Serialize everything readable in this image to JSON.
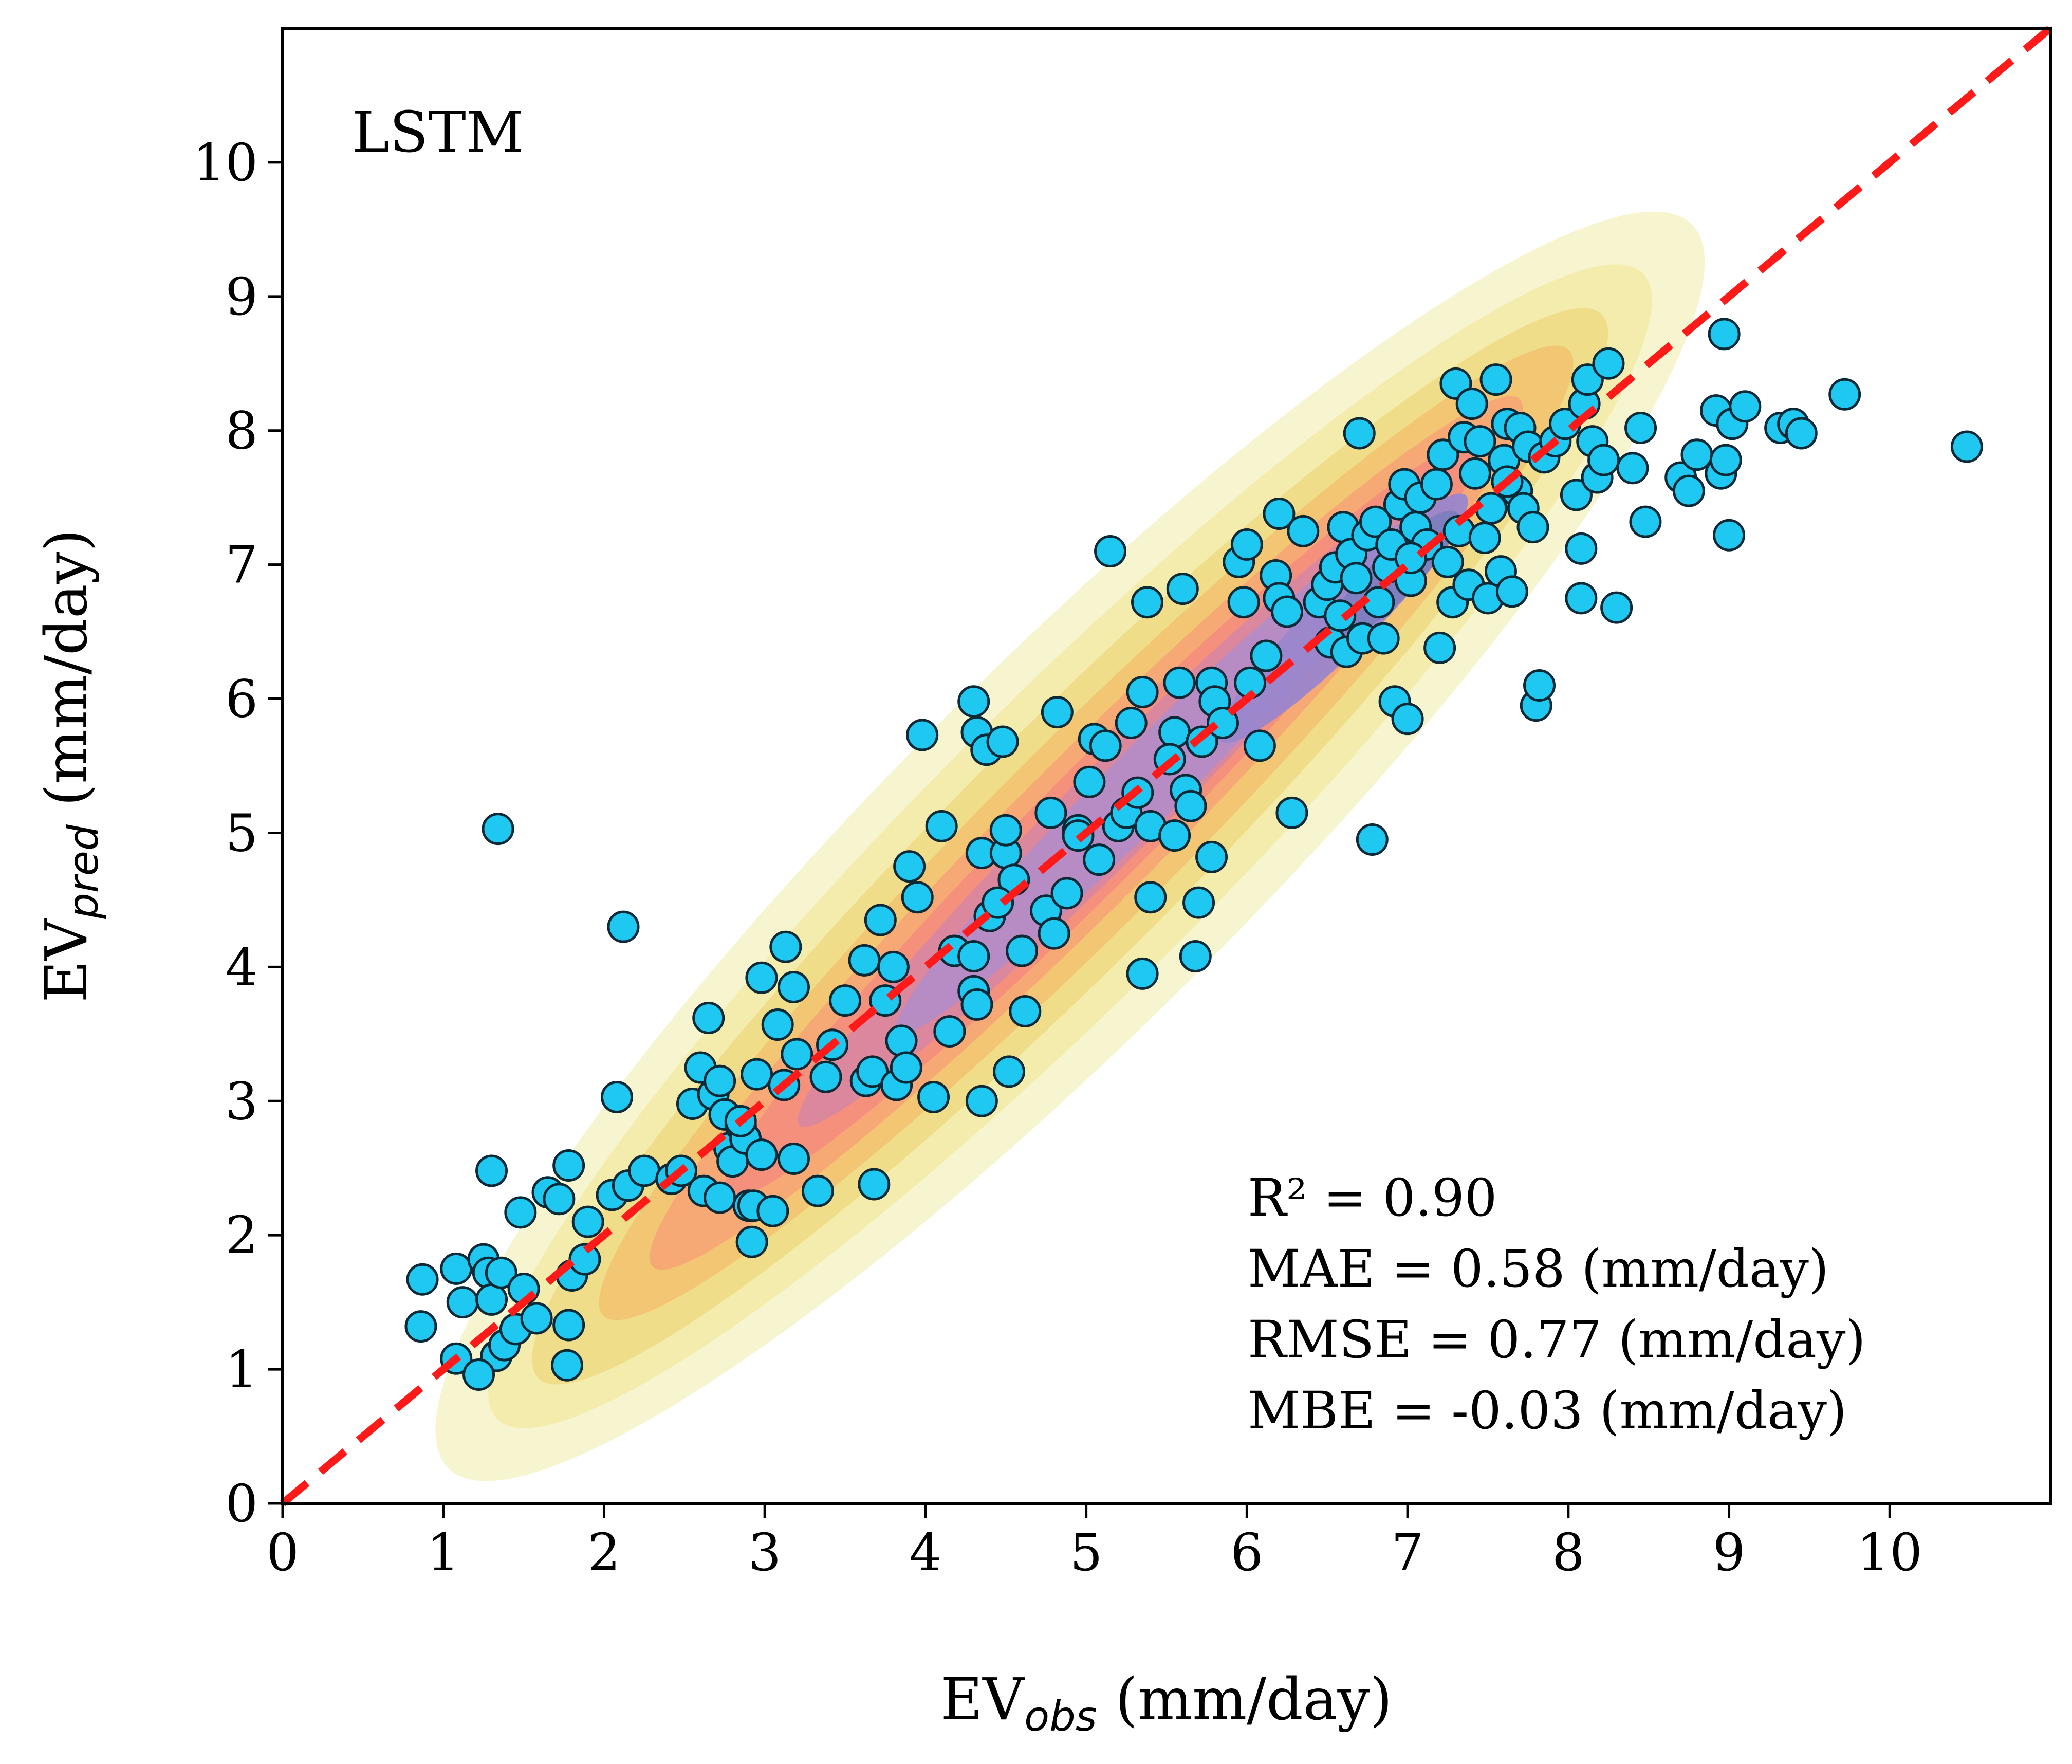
{
  "chart_data": {
    "type": "scatter",
    "title": "",
    "model_label": "LSTM",
    "xlabel": {
      "main": "EV",
      "sub": "obs",
      "unit": " (mm/day)"
    },
    "ylabel": {
      "main": "EV",
      "sub": "pred",
      "unit": " (mm/day)"
    },
    "xlim": [
      0,
      11
    ],
    "ylim": [
      0,
      11
    ],
    "xticks": [
      "0",
      "1",
      "2",
      "3",
      "4",
      "5",
      "6",
      "7",
      "8",
      "9",
      "10"
    ],
    "yticks": [
      "0",
      "1",
      "2",
      "3",
      "4",
      "5",
      "6",
      "7",
      "8",
      "9",
      "10"
    ],
    "grid": false,
    "legend": "none",
    "reference_line": {
      "label": "1:1 line",
      "from": [
        0,
        0
      ],
      "to": [
        11,
        11
      ],
      "color": "#ff1a1a",
      "style": "dashed"
    },
    "metrics": [
      "R² = 0.90",
      "MAE = 0.58 (mm/day)",
      "RMSE = 0.77 (mm/day)",
      "MBE = -0.03 (mm/day)"
    ],
    "point_color": "#1ec8f0",
    "density_colors": [
      "#f7f4cc",
      "#f3ebaa",
      "#efdc88",
      "#f2c472",
      "#f5a874",
      "#f38e7c",
      "#d987a0",
      "#b58cc6",
      "#9a86cc",
      "#7d7ec0"
    ],
    "series": [
      {
        "points": [
          [
            0.87,
            1.67
          ],
          [
            0.86,
            1.32
          ],
          [
            1.08,
            1.75
          ],
          [
            1.12,
            1.5
          ],
          [
            1.08,
            1.08
          ],
          [
            1.25,
            1.82
          ],
          [
            1.28,
            1.72
          ],
          [
            1.3,
            1.52
          ],
          [
            1.33,
            1.1
          ],
          [
            1.22,
            0.96
          ],
          [
            1.36,
            1.72
          ],
          [
            1.38,
            1.18
          ],
          [
            1.45,
            1.3
          ],
          [
            1.5,
            1.6
          ],
          [
            1.58,
            1.38
          ],
          [
            1.3,
            2.48
          ],
          [
            1.48,
            2.17
          ],
          [
            1.65,
            2.32
          ],
          [
            1.72,
            2.27
          ],
          [
            1.78,
            2.52
          ],
          [
            1.8,
            1.7
          ],
          [
            1.88,
            1.82
          ],
          [
            1.9,
            2.1
          ],
          [
            1.78,
            1.33
          ],
          [
            1.77,
            1.03
          ],
          [
            2.05,
            2.3
          ],
          [
            2.15,
            2.37
          ],
          [
            2.25,
            2.48
          ],
          [
            2.42,
            2.42
          ],
          [
            2.08,
            3.03
          ],
          [
            2.12,
            4.3
          ],
          [
            1.34,
            5.03
          ],
          [
            2.55,
            2.98
          ],
          [
            2.6,
            3.25
          ],
          [
            2.65,
            3.62
          ],
          [
            2.68,
            3.05
          ],
          [
            2.72,
            3.15
          ],
          [
            2.75,
            2.9
          ],
          [
            2.62,
            2.33
          ],
          [
            2.72,
            2.28
          ],
          [
            2.78,
            2.65
          ],
          [
            2.8,
            2.55
          ],
          [
            2.85,
            2.82
          ],
          [
            2.88,
            2.72
          ],
          [
            2.9,
            2.22
          ],
          [
            2.93,
            2.22
          ],
          [
            2.95,
            3.2
          ],
          [
            2.98,
            2.6
          ],
          [
            3.05,
            2.18
          ],
          [
            2.92,
            1.95
          ],
          [
            2.98,
            3.92
          ],
          [
            3.08,
            3.57
          ],
          [
            3.13,
            4.15
          ],
          [
            3.18,
            3.85
          ],
          [
            3.2,
            3.35
          ],
          [
            3.18,
            2.57
          ],
          [
            3.33,
            2.33
          ],
          [
            3.38,
            3.18
          ],
          [
            3.5,
            3.75
          ],
          [
            3.62,
            4.05
          ],
          [
            3.63,
            3.15
          ],
          [
            3.67,
            3.22
          ],
          [
            3.72,
            4.35
          ],
          [
            3.75,
            3.75
          ],
          [
            3.8,
            4.0
          ],
          [
            3.82,
            3.12
          ],
          [
            3.85,
            3.45
          ],
          [
            3.88,
            3.25
          ],
          [
            3.9,
            4.75
          ],
          [
            3.95,
            4.52
          ],
          [
            3.98,
            5.73
          ],
          [
            3.68,
            2.38
          ],
          [
            4.05,
            3.03
          ],
          [
            4.1,
            5.05
          ],
          [
            4.15,
            3.52
          ],
          [
            4.18,
            4.12
          ],
          [
            4.3,
            4.08
          ],
          [
            4.3,
            3.82
          ],
          [
            4.32,
            3.72
          ],
          [
            4.3,
            5.98
          ],
          [
            4.32,
            5.75
          ],
          [
            4.35,
            4.85
          ],
          [
            4.38,
            5.62
          ],
          [
            4.4,
            4.38
          ],
          [
            4.48,
            5.68
          ],
          [
            4.5,
            4.85
          ],
          [
            4.5,
            5.02
          ],
          [
            4.55,
            4.65
          ],
          [
            4.6,
            4.12
          ],
          [
            4.62,
            3.67
          ],
          [
            4.52,
            3.22
          ],
          [
            4.35,
            3.0
          ],
          [
            4.75,
            4.42
          ],
          [
            4.78,
            5.15
          ],
          [
            4.8,
            4.25
          ],
          [
            4.82,
            5.9
          ],
          [
            4.88,
            4.55
          ],
          [
            4.95,
            5.02
          ],
          [
            5.02,
            5.38
          ],
          [
            5.05,
            5.7
          ],
          [
            5.08,
            4.8
          ],
          [
            5.12,
            5.65
          ],
          [
            5.15,
            7.1
          ],
          [
            5.2,
            5.05
          ],
          [
            5.25,
            5.15
          ],
          [
            5.28,
            5.82
          ],
          [
            5.32,
            5.3
          ],
          [
            5.35,
            6.05
          ],
          [
            5.38,
            6.72
          ],
          [
            5.4,
            5.05
          ],
          [
            5.4,
            4.52
          ],
          [
            5.35,
            3.95
          ],
          [
            5.55,
            5.75
          ],
          [
            5.55,
            4.98
          ],
          [
            5.58,
            6.12
          ],
          [
            5.6,
            6.82
          ],
          [
            5.62,
            5.32
          ],
          [
            5.65,
            5.2
          ],
          [
            5.7,
            4.48
          ],
          [
            5.68,
            4.08
          ],
          [
            5.72,
            5.68
          ],
          [
            5.78,
            6.12
          ],
          [
            5.8,
            5.98
          ],
          [
            5.78,
            4.82
          ],
          [
            5.85,
            5.82
          ],
          [
            5.95,
            7.02
          ],
          [
            5.98,
            6.72
          ],
          [
            6.0,
            7.15
          ],
          [
            6.02,
            6.12
          ],
          [
            6.08,
            5.65
          ],
          [
            6.12,
            6.32
          ],
          [
            6.18,
            6.92
          ],
          [
            6.2,
            6.75
          ],
          [
            6.2,
            7.38
          ],
          [
            6.25,
            6.65
          ],
          [
            6.28,
            5.15
          ],
          [
            6.35,
            7.25
          ],
          [
            6.45,
            6.72
          ],
          [
            6.5,
            6.85
          ],
          [
            6.52,
            6.42
          ],
          [
            6.55,
            6.98
          ],
          [
            6.6,
            7.28
          ],
          [
            6.62,
            6.35
          ],
          [
            6.65,
            7.08
          ],
          [
            6.68,
            6.9
          ],
          [
            6.7,
            7.98
          ],
          [
            6.72,
            6.45
          ],
          [
            6.75,
            7.22
          ],
          [
            6.78,
            4.95
          ],
          [
            6.8,
            7.32
          ],
          [
            6.82,
            6.72
          ],
          [
            6.85,
            6.45
          ],
          [
            6.88,
            6.98
          ],
          [
            6.9,
            7.15
          ],
          [
            6.92,
            5.98
          ],
          [
            6.95,
            7.45
          ],
          [
            6.98,
            7.6
          ],
          [
            7.0,
            5.85
          ],
          [
            7.02,
            6.88
          ],
          [
            7.05,
            7.28
          ],
          [
            7.08,
            7.5
          ],
          [
            7.12,
            7.15
          ],
          [
            7.18,
            7.6
          ],
          [
            7.2,
            6.38
          ],
          [
            7.22,
            7.82
          ],
          [
            7.25,
            7.02
          ],
          [
            7.28,
            6.72
          ],
          [
            7.3,
            8.35
          ],
          [
            7.32,
            7.25
          ],
          [
            7.35,
            7.95
          ],
          [
            7.38,
            6.85
          ],
          [
            7.4,
            8.2
          ],
          [
            7.42,
            7.68
          ],
          [
            7.45,
            7.92
          ],
          [
            7.48,
            7.2
          ],
          [
            7.5,
            6.75
          ],
          [
            7.52,
            7.42
          ],
          [
            7.55,
            8.38
          ],
          [
            7.58,
            6.95
          ],
          [
            7.6,
            7.78
          ],
          [
            7.62,
            8.05
          ],
          [
            7.65,
            6.8
          ],
          [
            7.68,
            7.55
          ],
          [
            7.7,
            8.02
          ],
          [
            7.72,
            7.42
          ],
          [
            7.75,
            7.88
          ],
          [
            7.78,
            7.28
          ],
          [
            7.8,
            5.95
          ],
          [
            7.82,
            6.1
          ],
          [
            7.85,
            7.8
          ],
          [
            7.92,
            7.92
          ],
          [
            7.98,
            8.05
          ],
          [
            8.05,
            7.52
          ],
          [
            8.08,
            7.12
          ],
          [
            8.08,
            6.75
          ],
          [
            8.1,
            8.2
          ],
          [
            8.12,
            8.38
          ],
          [
            8.15,
            7.92
          ],
          [
            8.18,
            7.65
          ],
          [
            8.22,
            7.78
          ],
          [
            8.25,
            8.5
          ],
          [
            8.3,
            6.68
          ],
          [
            8.4,
            7.72
          ],
          [
            8.45,
            8.02
          ],
          [
            8.48,
            7.32
          ],
          [
            8.7,
            7.65
          ],
          [
            8.75,
            7.55
          ],
          [
            8.8,
            7.82
          ],
          [
            8.92,
            8.15
          ],
          [
            8.95,
            7.68
          ],
          [
            8.97,
            8.72
          ],
          [
            8.98,
            7.78
          ],
          [
            9.0,
            7.22
          ],
          [
            9.02,
            8.05
          ],
          [
            9.1,
            8.18
          ],
          [
            9.32,
            8.02
          ],
          [
            9.4,
            8.05
          ],
          [
            9.45,
            7.98
          ],
          [
            9.72,
            8.27
          ],
          [
            10.48,
            7.88
          ],
          [
            7.62,
            7.62
          ],
          [
            7.02,
            7.05
          ],
          [
            6.58,
            6.62
          ],
          [
            5.52,
            5.55
          ],
          [
            4.95,
            4.98
          ],
          [
            4.45,
            4.48
          ],
          [
            3.42,
            3.42
          ],
          [
            3.12,
            3.12
          ],
          [
            2.85,
            2.85
          ],
          [
            2.48,
            2.48
          ]
        ]
      }
    ]
  }
}
